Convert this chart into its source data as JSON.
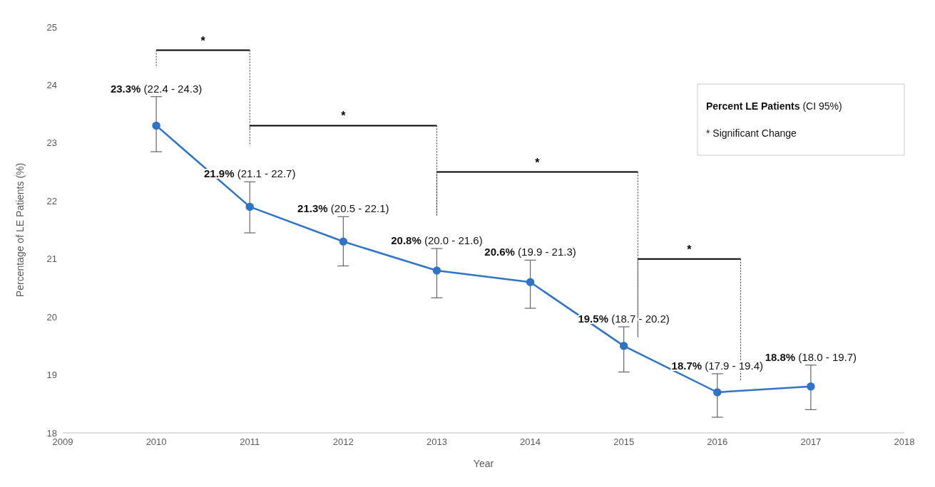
{
  "chart_data": {
    "type": "line",
    "xlabel": "Year",
    "ylabel": "Percentage of LE Patients (%)",
    "x": [
      2010,
      2011,
      2012,
      2013,
      2014,
      2015,
      2016,
      2017
    ],
    "series": [
      {
        "color": "#2f74c6",
        "values": [
          23.3,
          21.9,
          21.3,
          20.8,
          20.6,
          19.5,
          18.7,
          18.8
        ],
        "errors": [
          [
            22.85,
            23.8
          ],
          [
            21.45,
            22.33
          ],
          [
            20.88,
            21.73
          ],
          [
            20.33,
            21.18
          ],
          [
            20.15,
            20.98
          ],
          [
            19.05,
            19.83
          ],
          [
            18.27,
            19.02
          ],
          [
            18.4,
            19.17
          ]
        ],
        "value_labels": [
          "23.3% (22.4 - 24.3)",
          "21.9% (21.1 - 22.7)",
          "21.3% (20.5 - 22.1)",
          "20.8% (20.0 - 21.6)",
          "20.6% (19.9 - 21.3)",
          "19.5% (18.7 - 20.2)",
          "18.7% (17.9 - 19.4)",
          "18.8% (18.0 - 19.7)"
        ]
      }
    ],
    "xlim": [
      2009,
      2018
    ],
    "xticks": [
      2009,
      2010,
      2011,
      2012,
      2013,
      2014,
      2015,
      2016,
      2017,
      2018
    ],
    "ylim": [
      18,
      25
    ],
    "yticks": [
      18,
      19,
      20,
      21,
      22,
      23,
      24,
      25
    ],
    "grid": false,
    "legend": false,
    "marker": "circle",
    "line_style": "solid",
    "annotations": [
      "*",
      "*",
      "*",
      "*",
      "Percent LE Patients (CI 95%)",
      "* Significant Change"
    ]
  }
}
